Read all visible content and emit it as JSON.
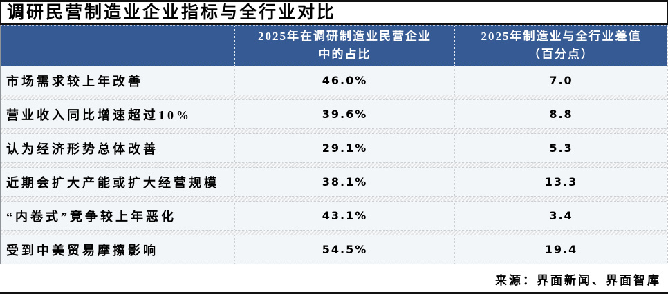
{
  "title": "调研民营制造业企业指标与全行业对比",
  "table": {
    "header": {
      "col1": "",
      "col2_line1": "2025年在调研制造业民营企业",
      "col2_line2": "中的占比",
      "col3_line1": "2025年制造业与全行业差值",
      "col3_line2": "（百分点）"
    },
    "rows": [
      {
        "label": "市场需求较上年改善",
        "share": "46.0%",
        "diff": "7.0"
      },
      {
        "label": "营业收入同比增速超过10%",
        "share": "39.6%",
        "diff": "8.8"
      },
      {
        "label": "认为经济形势总体改善",
        "share": "29.1%",
        "diff": "5.3"
      },
      {
        "label": "近期会扩大产能或扩大经营规模",
        "share": "38.1%",
        "diff": "13.3"
      },
      {
        "label": "“内卷式”竞争较上年恶化",
        "share": "43.1%",
        "diff": "3.4"
      },
      {
        "label": "受到中美贸易摩擦影响",
        "share": "54.5%",
        "diff": "19.4"
      }
    ]
  },
  "source": "来源：界面新闻、界面智库",
  "colors": {
    "header_bg": "#365B94",
    "row_bg": "#F3F6F8",
    "frame_rule": "#111111"
  },
  "chart_data": {
    "type": "table",
    "title": "调研民营制造业企业指标与全行业对比",
    "columns": [
      "",
      "2025年在调研制造业民营企业中的占比",
      "2025年制造业与全行业差值（百分点）"
    ],
    "rows": [
      [
        "市场需求较上年改善",
        46.0,
        7.0
      ],
      [
        "营业收入同比增速超过10%",
        39.6,
        8.8
      ],
      [
        "认为经济形势总体改善",
        29.1,
        5.3
      ],
      [
        "近期会扩大产能或扩大经营规模",
        38.1,
        13.3
      ],
      [
        "“内卷式”竞争较上年恶化",
        43.1,
        3.4
      ],
      [
        "受到中美贸易摩擦影响",
        54.5,
        19.4
      ]
    ],
    "units": {
      "col2": "percent of surveyed firms",
      "col3": "percentage points"
    },
    "source": "来源：界面新闻、界面智库"
  }
}
